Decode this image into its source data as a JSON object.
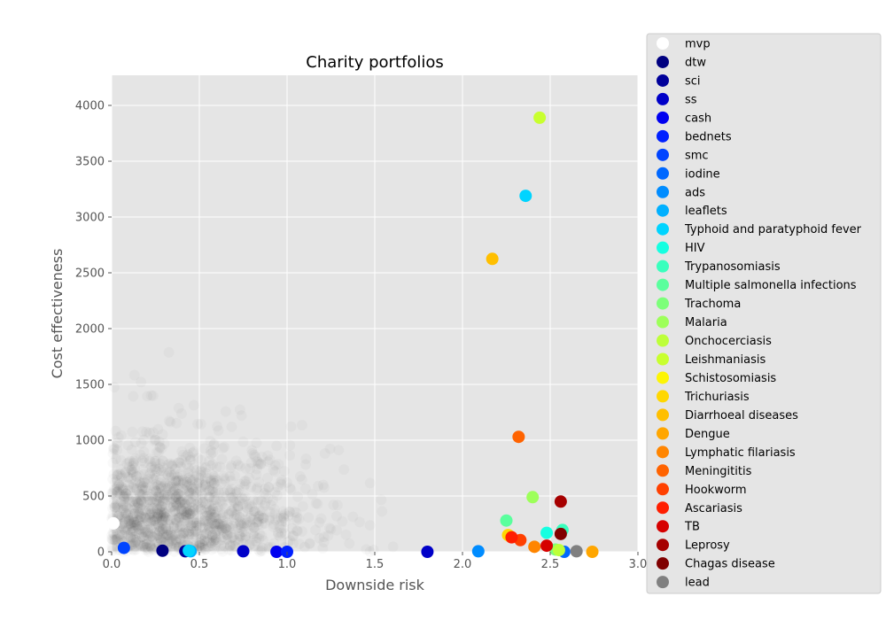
{
  "chart_data": {
    "type": "scatter",
    "title": "Charity portfolios",
    "xlabel": "Downside risk",
    "ylabel": "Cost effectiveness",
    "xlim": [
      0,
      3.0
    ],
    "ylim": [
      0,
      4270
    ],
    "xticks": [
      "0.0",
      "0.5",
      "1.0",
      "1.5",
      "2.0",
      "2.5",
      "3.0"
    ],
    "xtick_values": [
      0,
      0.5,
      1.0,
      1.5,
      2.0,
      2.5,
      3.0
    ],
    "yticks": [
      "0",
      "500",
      "1000",
      "1500",
      "2000",
      "2500",
      "3000",
      "3500",
      "4000"
    ],
    "ytick_values": [
      0,
      500,
      1000,
      1500,
      2000,
      2500,
      3000,
      3500,
      4000
    ],
    "grid": true,
    "legend_position": "outside-right",
    "background_cloud": {
      "description_hidden": true,
      "color": "#000000",
      "center": [
        0.35,
        350
      ],
      "spread": [
        0.35,
        320
      ],
      "count": 1400
    },
    "series": [
      {
        "name": "mvp",
        "color": "#ffffff",
        "points": [
          [
            0.01,
            255
          ]
        ]
      },
      {
        "name": "dtw",
        "color": "#000080",
        "points": [
          [
            0.29,
            10
          ]
        ]
      },
      {
        "name": "sci",
        "color": "#00009a",
        "points": [
          [
            0.42,
            5
          ]
        ]
      },
      {
        "name": "ss",
        "color": "#0000c8",
        "points": [
          [
            0.75,
            5
          ],
          [
            1.8,
            0
          ]
        ]
      },
      {
        "name": "cash",
        "color": "#0000f0",
        "points": [
          [
            0.94,
            0
          ]
        ]
      },
      {
        "name": "bednets",
        "color": "#0020ff",
        "points": [
          [
            1.0,
            0
          ]
        ]
      },
      {
        "name": "smc",
        "color": "#0044ff",
        "points": [
          [
            0.07,
            35
          ]
        ]
      },
      {
        "name": "iodine",
        "color": "#0068ff",
        "points": [
          [
            2.58,
            0
          ]
        ]
      },
      {
        "name": "ads",
        "color": "#008cff",
        "points": [
          [
            2.09,
            5
          ]
        ]
      },
      {
        "name": "leaflets",
        "color": "#00b0ff",
        "points": [
          [
            0.45,
            5
          ]
        ]
      },
      {
        "name": "Typhoid and paratyphoid fever",
        "color": "#00d4ff",
        "points": [
          [
            2.36,
            3190
          ],
          [
            0.44,
            10
          ]
        ]
      },
      {
        "name": "HIV",
        "color": "#16ffe1",
        "points": [
          [
            2.48,
            170
          ]
        ]
      },
      {
        "name": "Trypanosomiasis",
        "color": "#39ffbd",
        "points": [
          [
            2.57,
            195
          ]
        ]
      },
      {
        "name": "Multiple salmonella infections",
        "color": "#5aff9d",
        "points": [
          [
            2.25,
            280
          ]
        ]
      },
      {
        "name": "Trachoma",
        "color": "#7dff7a",
        "points": [
          [
            2.53,
            20
          ]
        ]
      },
      {
        "name": "Malaria",
        "color": "#9dff5a",
        "points": [
          [
            2.4,
            490
          ]
        ]
      },
      {
        "name": "Onchocerciasis",
        "color": "#bdff39",
        "points": [
          [
            2.55,
            15
          ]
        ]
      },
      {
        "name": "Leishmaniasis",
        "color": "#c8ff2f",
        "points": [
          [
            2.44,
            3890
          ]
        ]
      },
      {
        "name": "Schistosomiasis",
        "color": "#fdf504",
        "points": [
          [
            2.27,
            140
          ]
        ]
      },
      {
        "name": "Trichuriasis",
        "color": "#ffd700",
        "points": [
          [
            2.26,
            150
          ]
        ]
      },
      {
        "name": "Diarrhoeal diseases",
        "color": "#ffbf00",
        "points": [
          [
            2.17,
            2625
          ]
        ]
      },
      {
        "name": "Dengue",
        "color": "#ffa600",
        "points": [
          [
            2.74,
            0
          ]
        ]
      },
      {
        "name": "Lymphatic filariasis",
        "color": "#ff8500",
        "points": [
          [
            2.41,
            45
          ]
        ]
      },
      {
        "name": "Meningititis",
        "color": "#ff6300",
        "points": [
          [
            2.32,
            1030
          ]
        ]
      },
      {
        "name": "Hookworm",
        "color": "#ff4000",
        "points": [
          [
            2.33,
            105
          ]
        ]
      },
      {
        "name": "Ascariasis",
        "color": "#ff1e00",
        "points": [
          [
            2.28,
            130
          ]
        ]
      },
      {
        "name": "TB",
        "color": "#d60000",
        "points": [
          [
            2.48,
            55
          ]
        ]
      },
      {
        "name": "Leprosy",
        "color": "#a60000",
        "points": [
          [
            2.56,
            450
          ]
        ]
      },
      {
        "name": "Chagas disease",
        "color": "#800000",
        "points": [
          [
            2.56,
            160
          ]
        ]
      },
      {
        "name": "lead",
        "color": "#808080",
        "points": [
          [
            2.65,
            5
          ]
        ]
      }
    ]
  }
}
